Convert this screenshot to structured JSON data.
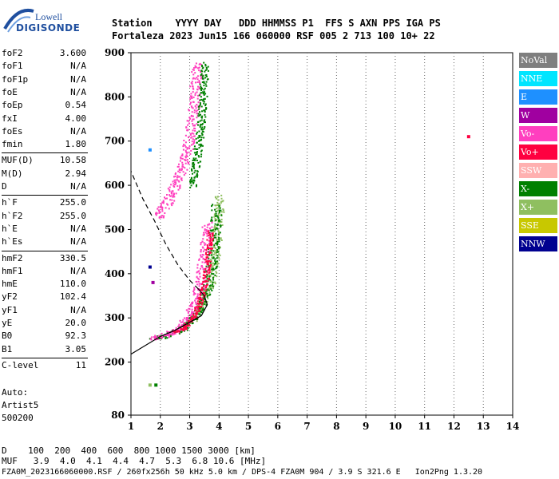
{
  "logo": {
    "top": "Lowell",
    "bottom": "DIGISONDE"
  },
  "header": {
    "line1": "Station    YYYY DAY   DDD HHMMSS P1  FFS S AXN PPS IGA PS",
    "line2": "Fortaleza 2023 Jun15 166 060000 RSF 005 2 713 100 10+ 22"
  },
  "params": [
    {
      "k": "foF2",
      "v": "3.600"
    },
    {
      "k": "foF1",
      "v": "N/A"
    },
    {
      "k": "foF1p",
      "v": "N/A"
    },
    {
      "k": "foE",
      "v": "N/A"
    },
    {
      "k": "foEp",
      "v": "0.54"
    },
    {
      "k": "fxI",
      "v": "4.00"
    },
    {
      "k": "foEs",
      "v": "N/A"
    },
    {
      "k": "fmin",
      "v": "1.80"
    },
    {
      "k": "MUF(D)",
      "v": "10.58"
    },
    {
      "k": "M(D)",
      "v": "2.94"
    },
    {
      "k": "D",
      "v": "N/A"
    },
    {
      "k": "h`F",
      "v": "255.0"
    },
    {
      "k": "h`F2",
      "v": "255.0"
    },
    {
      "k": "h`E",
      "v": "N/A"
    },
    {
      "k": "h`Es",
      "v": "N/A"
    },
    {
      "k": "hmF2",
      "v": "330.5"
    },
    {
      "k": "hmF1",
      "v": "N/A"
    },
    {
      "k": "hmE",
      "v": "110.0"
    },
    {
      "k": "yF2",
      "v": "102.4"
    },
    {
      "k": "yF1",
      "v": "N/A"
    },
    {
      "k": "yE",
      "v": "20.0"
    },
    {
      "k": "B0",
      "v": "92.3"
    },
    {
      "k": "B1",
      "v": "3.05"
    },
    {
      "k": "C-level",
      "v": "11"
    }
  ],
  "auto": {
    "l1": "Auto:",
    "l2": "Artist5",
    "l3": "500200"
  },
  "legend": [
    {
      "label": "NoVal",
      "color": "#7f7f7f"
    },
    {
      "label": "NNE",
      "color": "#00e5ff"
    },
    {
      "label": "E",
      "color": "#1e90ff"
    },
    {
      "label": "W",
      "color": "#a000a0"
    },
    {
      "label": "Vo-",
      "color": "#ff3fbf"
    },
    {
      "label": "Vo+",
      "color": "#ff0040"
    },
    {
      "label": "SSW",
      "color": "#ffb0b0"
    },
    {
      "label": "X-",
      "color": "#008000"
    },
    {
      "label": "X+",
      "color": "#8fbf60"
    },
    {
      "label": "SSE",
      "color": "#c8c800"
    },
    {
      "label": "NNW",
      "color": "#000090"
    }
  ],
  "bottom": {
    "line1": "D    100  200  400  600  800 1000 1500 3000 [km]",
    "line2": "MUF   3.9  4.0  4.1  4.4  4.7  5.3  6.8 10.6 [MHz]"
  },
  "footer": "FZA0M_2023166060000.RSF / 260fx256h 50 kHz 5.0 km / DPS-4 FZA0M 904 / 3.9 S 321.6 E   Ion2Png 1.3.20",
  "chart_data": {
    "type": "scatter",
    "xlim": [
      1,
      14
    ],
    "ylim": [
      80,
      900
    ],
    "xticks": [
      1,
      2,
      3,
      4,
      5,
      6,
      7,
      8,
      9,
      10,
      11,
      12,
      13,
      14
    ],
    "yticks": [
      80,
      200,
      300,
      400,
      500,
      600,
      700,
      800,
      900
    ],
    "grid": "vertical-dotted",
    "o_trace": {
      "color": "#ff3fbf",
      "points": [
        [
          1.75,
          255
        ],
        [
          2.0,
          260
        ],
        [
          2.3,
          265
        ],
        [
          2.6,
          275
        ],
        [
          2.8,
          290
        ],
        [
          3.0,
          310
        ],
        [
          3.2,
          340
        ],
        [
          3.35,
          380
        ],
        [
          3.45,
          430
        ],
        [
          3.55,
          480
        ],
        [
          3.6,
          520
        ]
      ]
    },
    "o_upper": {
      "color": "#ff3fbf",
      "points": [
        [
          1.9,
          530
        ],
        [
          2.2,
          560
        ],
        [
          2.5,
          600
        ],
        [
          2.7,
          640
        ],
        [
          2.9,
          680
        ],
        [
          3.0,
          720
        ],
        [
          3.1,
          760
        ],
        [
          3.15,
          800
        ],
        [
          3.2,
          840
        ],
        [
          3.25,
          880
        ]
      ]
    },
    "x_trace": {
      "color": "#008000",
      "points": [
        [
          1.8,
          255
        ],
        [
          2.2,
          262
        ],
        [
          2.6,
          272
        ],
        [
          3.0,
          290
        ],
        [
          3.3,
          320
        ],
        [
          3.55,
          360
        ],
        [
          3.7,
          410
        ],
        [
          3.8,
          460
        ],
        [
          3.85,
          510
        ],
        [
          3.9,
          560
        ]
      ]
    },
    "x_upper": {
      "color": "#008000",
      "points": [
        [
          3.1,
          600
        ],
        [
          3.2,
          650
        ],
        [
          3.3,
          700
        ],
        [
          3.4,
          760
        ],
        [
          3.45,
          820
        ],
        [
          3.5,
          880
        ]
      ]
    },
    "oplus_trace": {
      "color": "#ff0040",
      "points": [
        [
          2.5,
          270
        ],
        [
          2.9,
          285
        ],
        [
          3.2,
          310
        ],
        [
          3.4,
          350
        ],
        [
          3.55,
          400
        ],
        [
          3.65,
          460
        ],
        [
          3.7,
          500
        ]
      ]
    },
    "xplus_trace": {
      "color": "#8fbf60",
      "points": [
        [
          3.0,
          290
        ],
        [
          3.4,
          330
        ],
        [
          3.7,
          380
        ],
        [
          3.85,
          440
        ],
        [
          3.95,
          500
        ],
        [
          4.0,
          560
        ],
        [
          4.02,
          580
        ]
      ]
    },
    "edp_solid": [
      [
        1.0,
        218
      ],
      [
        1.5,
        238
      ],
      [
        2.0,
        258
      ],
      [
        2.5,
        272
      ],
      [
        3.0,
        290
      ],
      [
        3.4,
        305
      ],
      [
        3.6,
        330
      ],
      [
        3.5,
        350
      ],
      [
        3.3,
        365
      ]
    ],
    "edp_dashed": [
      [
        3.3,
        365
      ],
      [
        3.0,
        385
      ],
      [
        2.6,
        420
      ],
      [
        2.2,
        465
      ],
      [
        1.8,
        520
      ],
      [
        1.4,
        570
      ],
      [
        1.0,
        632
      ]
    ],
    "isolated": [
      {
        "x": 1.65,
        "y": 415,
        "color": "#000090"
      },
      {
        "x": 1.75,
        "y": 380,
        "color": "#a000a0"
      },
      {
        "x": 1.65,
        "y": 680,
        "color": "#1e90ff"
      },
      {
        "x": 12.5,
        "y": 710,
        "color": "#ff0040"
      },
      {
        "x": 1.65,
        "y": 148,
        "color": "#8fbf60"
      },
      {
        "x": 1.85,
        "y": 148,
        "color": "#008000"
      }
    ]
  }
}
